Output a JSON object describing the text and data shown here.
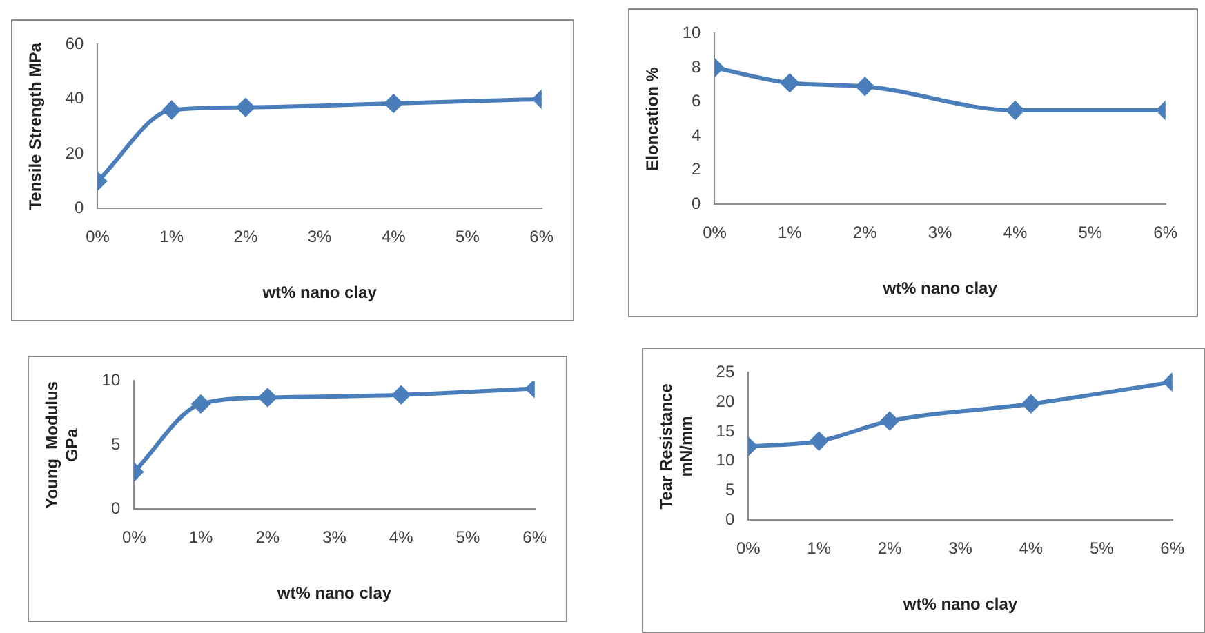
{
  "chart_data": [
    {
      "type": "line",
      "xlabel": "wt% nano clay",
      "ylabel": "Tensile Strength MPa",
      "x": [
        0,
        1,
        2,
        4,
        6
      ],
      "xlim": [
        0,
        6
      ],
      "xticks": [
        {
          "value": 0,
          "label": "0%"
        },
        {
          "value": 1,
          "label": "1%"
        },
        {
          "value": 2,
          "label": "2%"
        },
        {
          "value": 3,
          "label": "3%"
        },
        {
          "value": 4,
          "label": "4%"
        },
        {
          "value": 5,
          "label": "5%"
        },
        {
          "value": 6,
          "label": "6%"
        }
      ],
      "ylim": [
        0,
        60
      ],
      "yticks": [
        0,
        20,
        40,
        60
      ],
      "series": [
        {
          "color": "#4a7ebb",
          "values": [
            10,
            36,
            37,
            38.4,
            40
          ]
        }
      ],
      "marker": "diamond",
      "grid": false,
      "legend": false
    },
    {
      "type": "line",
      "xlabel": "wt% nano clay",
      "ylabel": "Eloncation %",
      "x": [
        0,
        1,
        2,
        4,
        6
      ],
      "xlim": [
        0,
        6
      ],
      "xticks": [
        {
          "value": 0,
          "label": "0%"
        },
        {
          "value": 1,
          "label": "1%"
        },
        {
          "value": 2,
          "label": "2%"
        },
        {
          "value": 3,
          "label": "3%"
        },
        {
          "value": 4,
          "label": "4%"
        },
        {
          "value": 5,
          "label": "5%"
        },
        {
          "value": 6,
          "label": "6%"
        }
      ],
      "ylim": [
        0,
        10
      ],
      "yticks": [
        0,
        2,
        4,
        6,
        8,
        10
      ],
      "series": [
        {
          "color": "#4a7ebb",
          "values": [
            8,
            7.1,
            6.9,
            5.5,
            5.5
          ]
        }
      ],
      "marker": "diamond",
      "grid": false,
      "legend": false
    },
    {
      "type": "line",
      "xlabel": "wt% nano clay",
      "ylabel": "Young  Modulus\nGPa",
      "x": [
        0,
        1,
        2,
        4,
        6
      ],
      "xlim": [
        0,
        6
      ],
      "xticks": [
        {
          "value": 0,
          "label": "0%"
        },
        {
          "value": 1,
          "label": "1%"
        },
        {
          "value": 2,
          "label": "2%"
        },
        {
          "value": 3,
          "label": "3%"
        },
        {
          "value": 4,
          "label": "4%"
        },
        {
          "value": 5,
          "label": "5%"
        },
        {
          "value": 6,
          "label": "6%"
        }
      ],
      "ylim": [
        0,
        10
      ],
      "yticks": [
        0,
        5,
        10
      ],
      "series": [
        {
          "color": "#4a7ebb",
          "values": [
            2.9,
            8.2,
            8.7,
            8.9,
            9.4
          ]
        }
      ],
      "marker": "diamond",
      "grid": false,
      "legend": false
    },
    {
      "type": "line",
      "xlabel": "wt% nano clay",
      "ylabel": "Tear Resistance\nmN/mm",
      "x": [
        0,
        1,
        2,
        4,
        6
      ],
      "xlim": [
        0,
        6
      ],
      "xticks": [
        {
          "value": 0,
          "label": "0%"
        },
        {
          "value": 1,
          "label": "1%"
        },
        {
          "value": 2,
          "label": "2%"
        },
        {
          "value": 3,
          "label": "3%"
        },
        {
          "value": 4,
          "label": "4%"
        },
        {
          "value": 5,
          "label": "5%"
        },
        {
          "value": 6,
          "label": "6%"
        }
      ],
      "ylim": [
        0,
        25
      ],
      "yticks": [
        0,
        5,
        10,
        15,
        20,
        25
      ],
      "series": [
        {
          "color": "#4a7ebb",
          "values": [
            12.5,
            13.4,
            16.8,
            19.7,
            23.4
          ]
        }
      ],
      "marker": "diamond",
      "grid": false,
      "legend": false
    }
  ]
}
